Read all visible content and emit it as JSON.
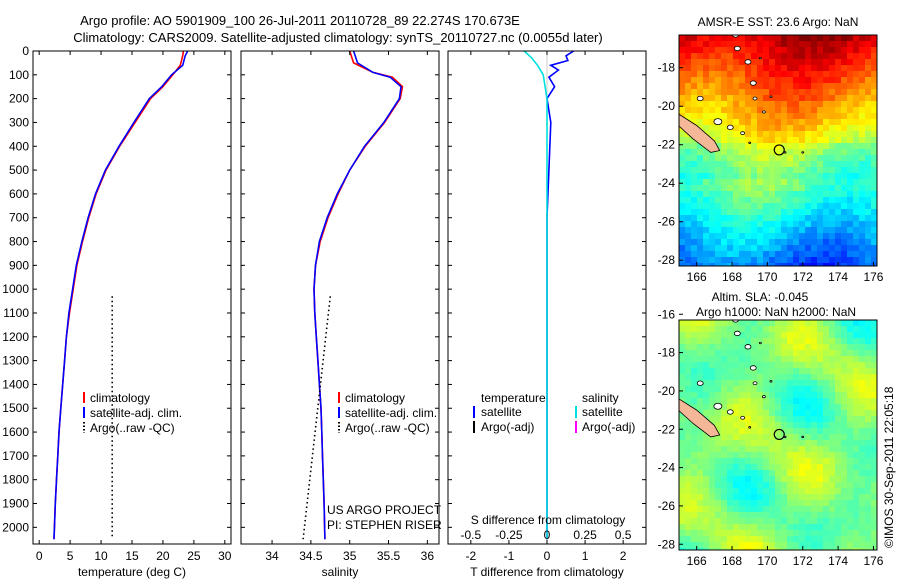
{
  "header": {
    "title_line1": "Argo profile: AO 5901909_100 26-Jul-2011 20110728_89 22.274S 170.673E",
    "title_line2": "Climatology: CARS2009. Satellite-adjusted climatology: synTS_20110727.nc (0.0055d later)"
  },
  "side_label": "©IMOS 30-Sep-2011 22:05:18",
  "colors": {
    "climatology": "#ff0000",
    "satellite": "#0000ff",
    "argo": "#000000",
    "satellite_salinity": "#00e0e0",
    "argo_salinity_adj": "#ff00ff",
    "land": "#f4b898"
  },
  "chart_data": [
    {
      "type": "line",
      "id": "temperature",
      "xlabel": "temperature (deg C)",
      "xlim": [
        -1,
        31
      ],
      "ylim": [
        2070,
        0
      ],
      "xticks": [
        0,
        5,
        10,
        15,
        20,
        25,
        30
      ],
      "yticks": [
        0,
        100,
        200,
        300,
        400,
        500,
        600,
        700,
        800,
        900,
        1000,
        1100,
        1200,
        1300,
        1400,
        1500,
        1600,
        1700,
        1800,
        1900,
        2000
      ],
      "legend": [
        "climatology",
        "satellite-adj. clim.",
        "Argo(..raw -QC)"
      ],
      "series": [
        {
          "name": "climatology",
          "color": "#ff0000",
          "x": [
            23.3,
            23.2,
            22.8,
            21.6,
            20.0,
            18.0,
            15.5,
            13.0,
            10.8,
            9.2,
            8.0,
            7.0,
            6.1,
            5.5,
            4.9,
            4.4,
            4.1,
            3.8,
            3.5,
            3.2,
            3.0,
            2.8,
            2.6,
            2.4
          ],
          "y": [
            0,
            20,
            60,
            100,
            150,
            200,
            300,
            400,
            500,
            600,
            700,
            800,
            900,
            1000,
            1100,
            1200,
            1300,
            1400,
            1500,
            1600,
            1700,
            1800,
            1900,
            2050
          ]
        },
        {
          "name": "satellite-adj. clim.",
          "color": "#0000ff",
          "x": [
            24.0,
            23.6,
            23.2,
            21.4,
            19.8,
            17.8,
            15.3,
            12.9,
            10.7,
            9.1,
            7.9,
            6.9,
            6.0,
            5.4,
            4.8,
            4.4,
            4.1,
            3.8,
            3.5,
            3.2,
            3.0,
            2.8,
            2.6,
            2.4
          ],
          "y": [
            0,
            20,
            60,
            100,
            150,
            200,
            300,
            400,
            500,
            600,
            700,
            800,
            900,
            1000,
            1100,
            1200,
            1300,
            1400,
            1500,
            1600,
            1700,
            1800,
            1900,
            2050
          ]
        },
        {
          "name": "Argo(..raw -QC)",
          "color": "#000000",
          "dotted": true,
          "x": [
            11.8,
            11.8
          ],
          "y": [
            1030,
            2050
          ]
        }
      ]
    },
    {
      "type": "line",
      "id": "salinity",
      "xlabel": "salinity",
      "xlim": [
        33.6,
        36.15
      ],
      "ylim": [
        2070,
        0
      ],
      "xticks": [
        34,
        34.5,
        35,
        35.5,
        36
      ],
      "legend": [
        "climatology",
        "satellite-adj. clim.",
        "Argo(..raw -QC)"
      ],
      "annotation": [
        "US ARGO PROJECT",
        "PI: STEPHEN RISER"
      ],
      "series": [
        {
          "name": "climatology",
          "color": "#ff0000",
          "x": [
            35.0,
            35.05,
            35.3,
            35.55,
            35.68,
            35.65,
            35.45,
            35.2,
            35.0,
            34.85,
            34.72,
            34.62,
            34.56,
            34.54,
            34.55,
            34.57,
            34.59,
            34.61,
            34.63,
            34.64,
            34.65,
            34.66,
            34.67,
            34.68
          ],
          "y": [
            0,
            50,
            90,
            110,
            150,
            200,
            300,
            400,
            500,
            600,
            700,
            800,
            900,
            1000,
            1100,
            1200,
            1300,
            1400,
            1500,
            1600,
            1700,
            1800,
            1900,
            2050
          ]
        },
        {
          "name": "satellite-adj. clim.",
          "color": "#0000ff",
          "x": [
            35.05,
            35.1,
            35.3,
            35.52,
            35.66,
            35.64,
            35.44,
            35.19,
            35.0,
            34.84,
            34.71,
            34.61,
            34.56,
            34.54,
            34.55,
            34.57,
            34.59,
            34.61,
            34.63,
            34.64,
            34.65,
            34.66,
            34.67,
            34.68
          ],
          "y": [
            0,
            50,
            90,
            110,
            150,
            200,
            300,
            400,
            500,
            600,
            700,
            800,
            900,
            1000,
            1100,
            1200,
            1300,
            1400,
            1500,
            1600,
            1700,
            1800,
            1900,
            2050
          ]
        },
        {
          "name": "Argo(..raw -QC)",
          "color": "#000000",
          "dotted": true,
          "x": [
            34.75,
            34.4
          ],
          "y": [
            1030,
            2050
          ]
        }
      ]
    },
    {
      "type": "line",
      "id": "difference",
      "xlabel": "T difference from climatology",
      "xlabel_top": "S difference from climatology",
      "xlim": [
        -2.6,
        2.6
      ],
      "ylim": [
        2070,
        0
      ],
      "xticks": [
        -2,
        -1,
        0,
        1,
        2
      ],
      "xticks_s": [
        -0.5,
        -0.25,
        0,
        0.25,
        0.5
      ],
      "xticks_s_labels": [
        "-0.5",
        "-0.25",
        "0",
        "0.25",
        "0.5"
      ],
      "legend_temperature": {
        "title": "temperature",
        "items": [
          "satellite",
          "Argo(-adj)"
        ]
      },
      "legend_salinity": {
        "title": "salinity",
        "items": [
          "satellite",
          "Argo(-adj)"
        ]
      },
      "series": [
        {
          "name": "temperature satellite",
          "color": "#0000ff",
          "x": [
            0.7,
            0.5,
            0.55,
            0.1,
            0.3,
            0.05,
            0.2,
            0.0,
            0.1,
            0.05,
            0.0,
            0.0,
            0.0,
            0.0,
            0.0,
            0.0
          ],
          "y": [
            0,
            20,
            40,
            60,
            80,
            110,
            150,
            200,
            300,
            500,
            700,
            900,
            1200,
            1500,
            1800,
            2050
          ]
        },
        {
          "name": "salinity satellite",
          "color": "#00e0e0",
          "x": [
            -0.6,
            -0.4,
            -0.25,
            -0.1,
            0.0,
            0.0,
            0.0,
            0.0,
            0.0,
            0.0
          ],
          "y": [
            0,
            30,
            60,
            100,
            200,
            400,
            800,
            1200,
            1600,
            2050
          ]
        }
      ]
    },
    {
      "type": "heatmap",
      "id": "sst-map",
      "title": "AMSR-E SST: 23.6  Argo: NaN",
      "xlim": [
        165,
        176.2
      ],
      "ylim": [
        -28.3,
        -16.3
      ],
      "xticks": [
        166,
        168,
        170,
        172,
        174,
        176
      ],
      "yticks": [
        -18,
        -20,
        -22,
        -24,
        -26,
        -28
      ],
      "float_position": [
        170.67,
        -22.27
      ]
    },
    {
      "type": "heatmap",
      "id": "sla-map",
      "title_line1": "Altim. SLA: -0.045",
      "title_line2": "Argo h1000: NaN h2000: NaN",
      "xlim": [
        165,
        176.2
      ],
      "ylim": [
        -28.3,
        -16.3
      ],
      "xticks": [
        166,
        168,
        170,
        172,
        174,
        176
      ],
      "yticks": [
        -16,
        -18,
        -20,
        -22,
        -24,
        -26,
        -28
      ],
      "float_position": [
        170.67,
        -22.27
      ]
    }
  ]
}
